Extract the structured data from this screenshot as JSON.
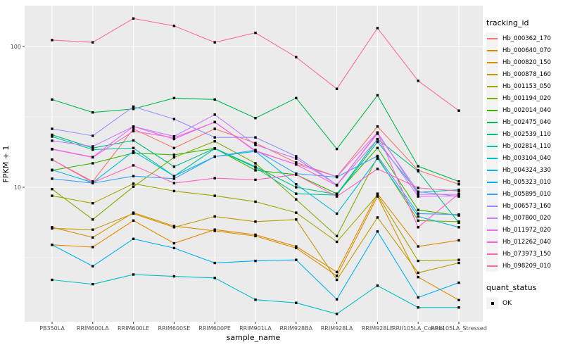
{
  "colors": {
    "panel_bg": "#EBEBEB",
    "grid": "#FFFFFF",
    "tick_text": "#4D4D4D",
    "axis_text": "#000000",
    "point": "#000000",
    "legend_key_bg": "#F3F3F3"
  },
  "legend": {
    "tracking_title": "tracking_id",
    "quant_title": "quant_status",
    "quant_ok_label": "OK"
  },
  "chart_data": {
    "type": "line",
    "title": "",
    "xlabel": "sample_name",
    "ylabel": "FPKM + 1",
    "y_scale": "log10",
    "ylim": [
      1.1,
      180
    ],
    "y_ticks": [
      100,
      10
    ],
    "y_tick_labels": [
      "100",
      "10"
    ],
    "y_minor_ticks": [
      31.62,
      3.162
    ],
    "grid": true,
    "legend_position": "right",
    "point_marker": "black-square",
    "quant_status_value": "OK",
    "categories": [
      "PB350LA",
      "RRIM600LA",
      "RRIM600LE",
      "RRIM600SE",
      "RRIM600PE",
      "RRIM901LA",
      "RRIM928BA",
      "RRIM928LA",
      "RRIM928LE",
      "RRII105LA_Control",
      "RRII105LA_Stressed"
    ],
    "series": [
      {
        "name": "Hb_000362_170",
        "color": "#F8766D",
        "values": [
          15.7,
          11.0,
          26.0,
          19.0,
          26.0,
          20.6,
          15.0,
          11.9,
          27.0,
          13.2,
          10.5
        ]
      },
      {
        "name": "Hb_000640_070",
        "color": "#E38900",
        "values": [
          3.9,
          3.76,
          5.8,
          4.0,
          5.0,
          4.6,
          3.8,
          2.5,
          9.0,
          3.8,
          4.2
        ]
      },
      {
        "name": "Hb_000820_150",
        "color": "#D89000",
        "values": [
          5.2,
          4.4,
          6.6,
          5.3,
          4.9,
          4.5,
          3.7,
          2.35,
          8.6,
          2.3,
          1.58
        ]
      },
      {
        "name": "Hb_000878_160",
        "color": "#C09B00",
        "values": [
          5.1,
          5.0,
          6.5,
          5.2,
          6.2,
          5.7,
          5.9,
          2.2,
          6.1,
          2.47,
          2.9
        ]
      },
      {
        "name": "Hb_001153_050",
        "color": "#A3A500",
        "values": [
          8.7,
          7.7,
          10.6,
          9.4,
          8.7,
          7.9,
          6.6,
          4.1,
          8.8,
          3.0,
          3.05
        ]
      },
      {
        "name": "Hb_001194_020",
        "color": "#7CAE00",
        "values": [
          9.7,
          5.9,
          10.1,
          16.3,
          21.2,
          14.8,
          8.2,
          4.5,
          16.4,
          5.8,
          5.7
        ]
      },
      {
        "name": "Hb_002014_040",
        "color": "#39B600",
        "values": [
          13.2,
          14.8,
          17.5,
          17.0,
          18.9,
          13.2,
          12.3,
          9.0,
          19.0,
          6.9,
          6.3
        ]
      },
      {
        "name": "Hb_002475_040",
        "color": "#00BB4E",
        "values": [
          42.0,
          34.0,
          36.0,
          43.0,
          42.0,
          31.0,
          43.0,
          18.7,
          45.0,
          14.1,
          11.0
        ]
      },
      {
        "name": "Hb_002539_110",
        "color": "#00BF7D",
        "values": [
          23.6,
          19.0,
          21.5,
          14.0,
          18.9,
          14.0,
          10.0,
          8.9,
          22.0,
          13.0,
          5.6
        ]
      },
      {
        "name": "Hb_002814_110",
        "color": "#00C1A3",
        "values": [
          22.9,
          18.5,
          19.0,
          12.0,
          18.8,
          13.8,
          9.0,
          8.8,
          21.0,
          9.2,
          9.6
        ]
      },
      {
        "name": "Hb_003104_040",
        "color": "#00BFC4",
        "values": [
          2.2,
          2.05,
          2.4,
          2.33,
          2.27,
          1.59,
          1.51,
          1.26,
          2.0,
          1.4,
          1.4
        ]
      },
      {
        "name": "Hb_004324_330",
        "color": "#00BAE0",
        "values": [
          13.3,
          10.8,
          18.0,
          12.0,
          16.5,
          18.0,
          10.5,
          6.5,
          16.0,
          6.2,
          5.2
        ]
      },
      {
        "name": "Hb_005323_010",
        "color": "#00B0F6",
        "values": [
          3.9,
          2.75,
          4.3,
          3.7,
          2.9,
          3.0,
          3.05,
          1.6,
          4.85,
          1.65,
          2.1
        ]
      },
      {
        "name": "Hb_005895_010",
        "color": "#35A2FF",
        "values": [
          11.5,
          10.7,
          12.0,
          11.5,
          16.5,
          18.4,
          12.5,
          11.8,
          16.7,
          6.5,
          6.4
        ]
      },
      {
        "name": "Hb_006573_160",
        "color": "#9590FF",
        "values": [
          26.0,
          23.2,
          37.4,
          30.5,
          22.6,
          22.6,
          16.6,
          10.4,
          24.0,
          9.3,
          8.6
        ]
      },
      {
        "name": "Hb_007800_020",
        "color": "#C77CFF",
        "values": [
          21.4,
          19.5,
          27.0,
          23.0,
          32.8,
          20.0,
          16.0,
          10.4,
          21.9,
          8.6,
          8.7
        ]
      },
      {
        "name": "Hb_011972_020",
        "color": "#E76BF3",
        "values": [
          18.7,
          16.4,
          27.0,
          22.0,
          29.1,
          18.0,
          14.6,
          11.9,
          24.5,
          8.9,
          8.9
        ]
      },
      {
        "name": "Hb_012262_040",
        "color": "#FA62DB",
        "values": [
          18.6,
          16.3,
          25.0,
          22.5,
          29.0,
          18.2,
          14.5,
          10.3,
          24.4,
          5.2,
          9.0
        ]
      },
      {
        "name": "Hb_073973_150",
        "color": "#FF62BC",
        "values": [
          15.7,
          10.8,
          14.3,
          10.7,
          11.6,
          11.3,
          12.3,
          8.6,
          13.5,
          9.9,
          9.4
        ]
      },
      {
        "name": "Hb_098209_010",
        "color": "#FF6A98",
        "values": [
          111.0,
          107.0,
          158.0,
          140.0,
          107.0,
          125.0,
          84.0,
          50.0,
          135.0,
          57.0,
          35.0
        ]
      }
    ]
  }
}
